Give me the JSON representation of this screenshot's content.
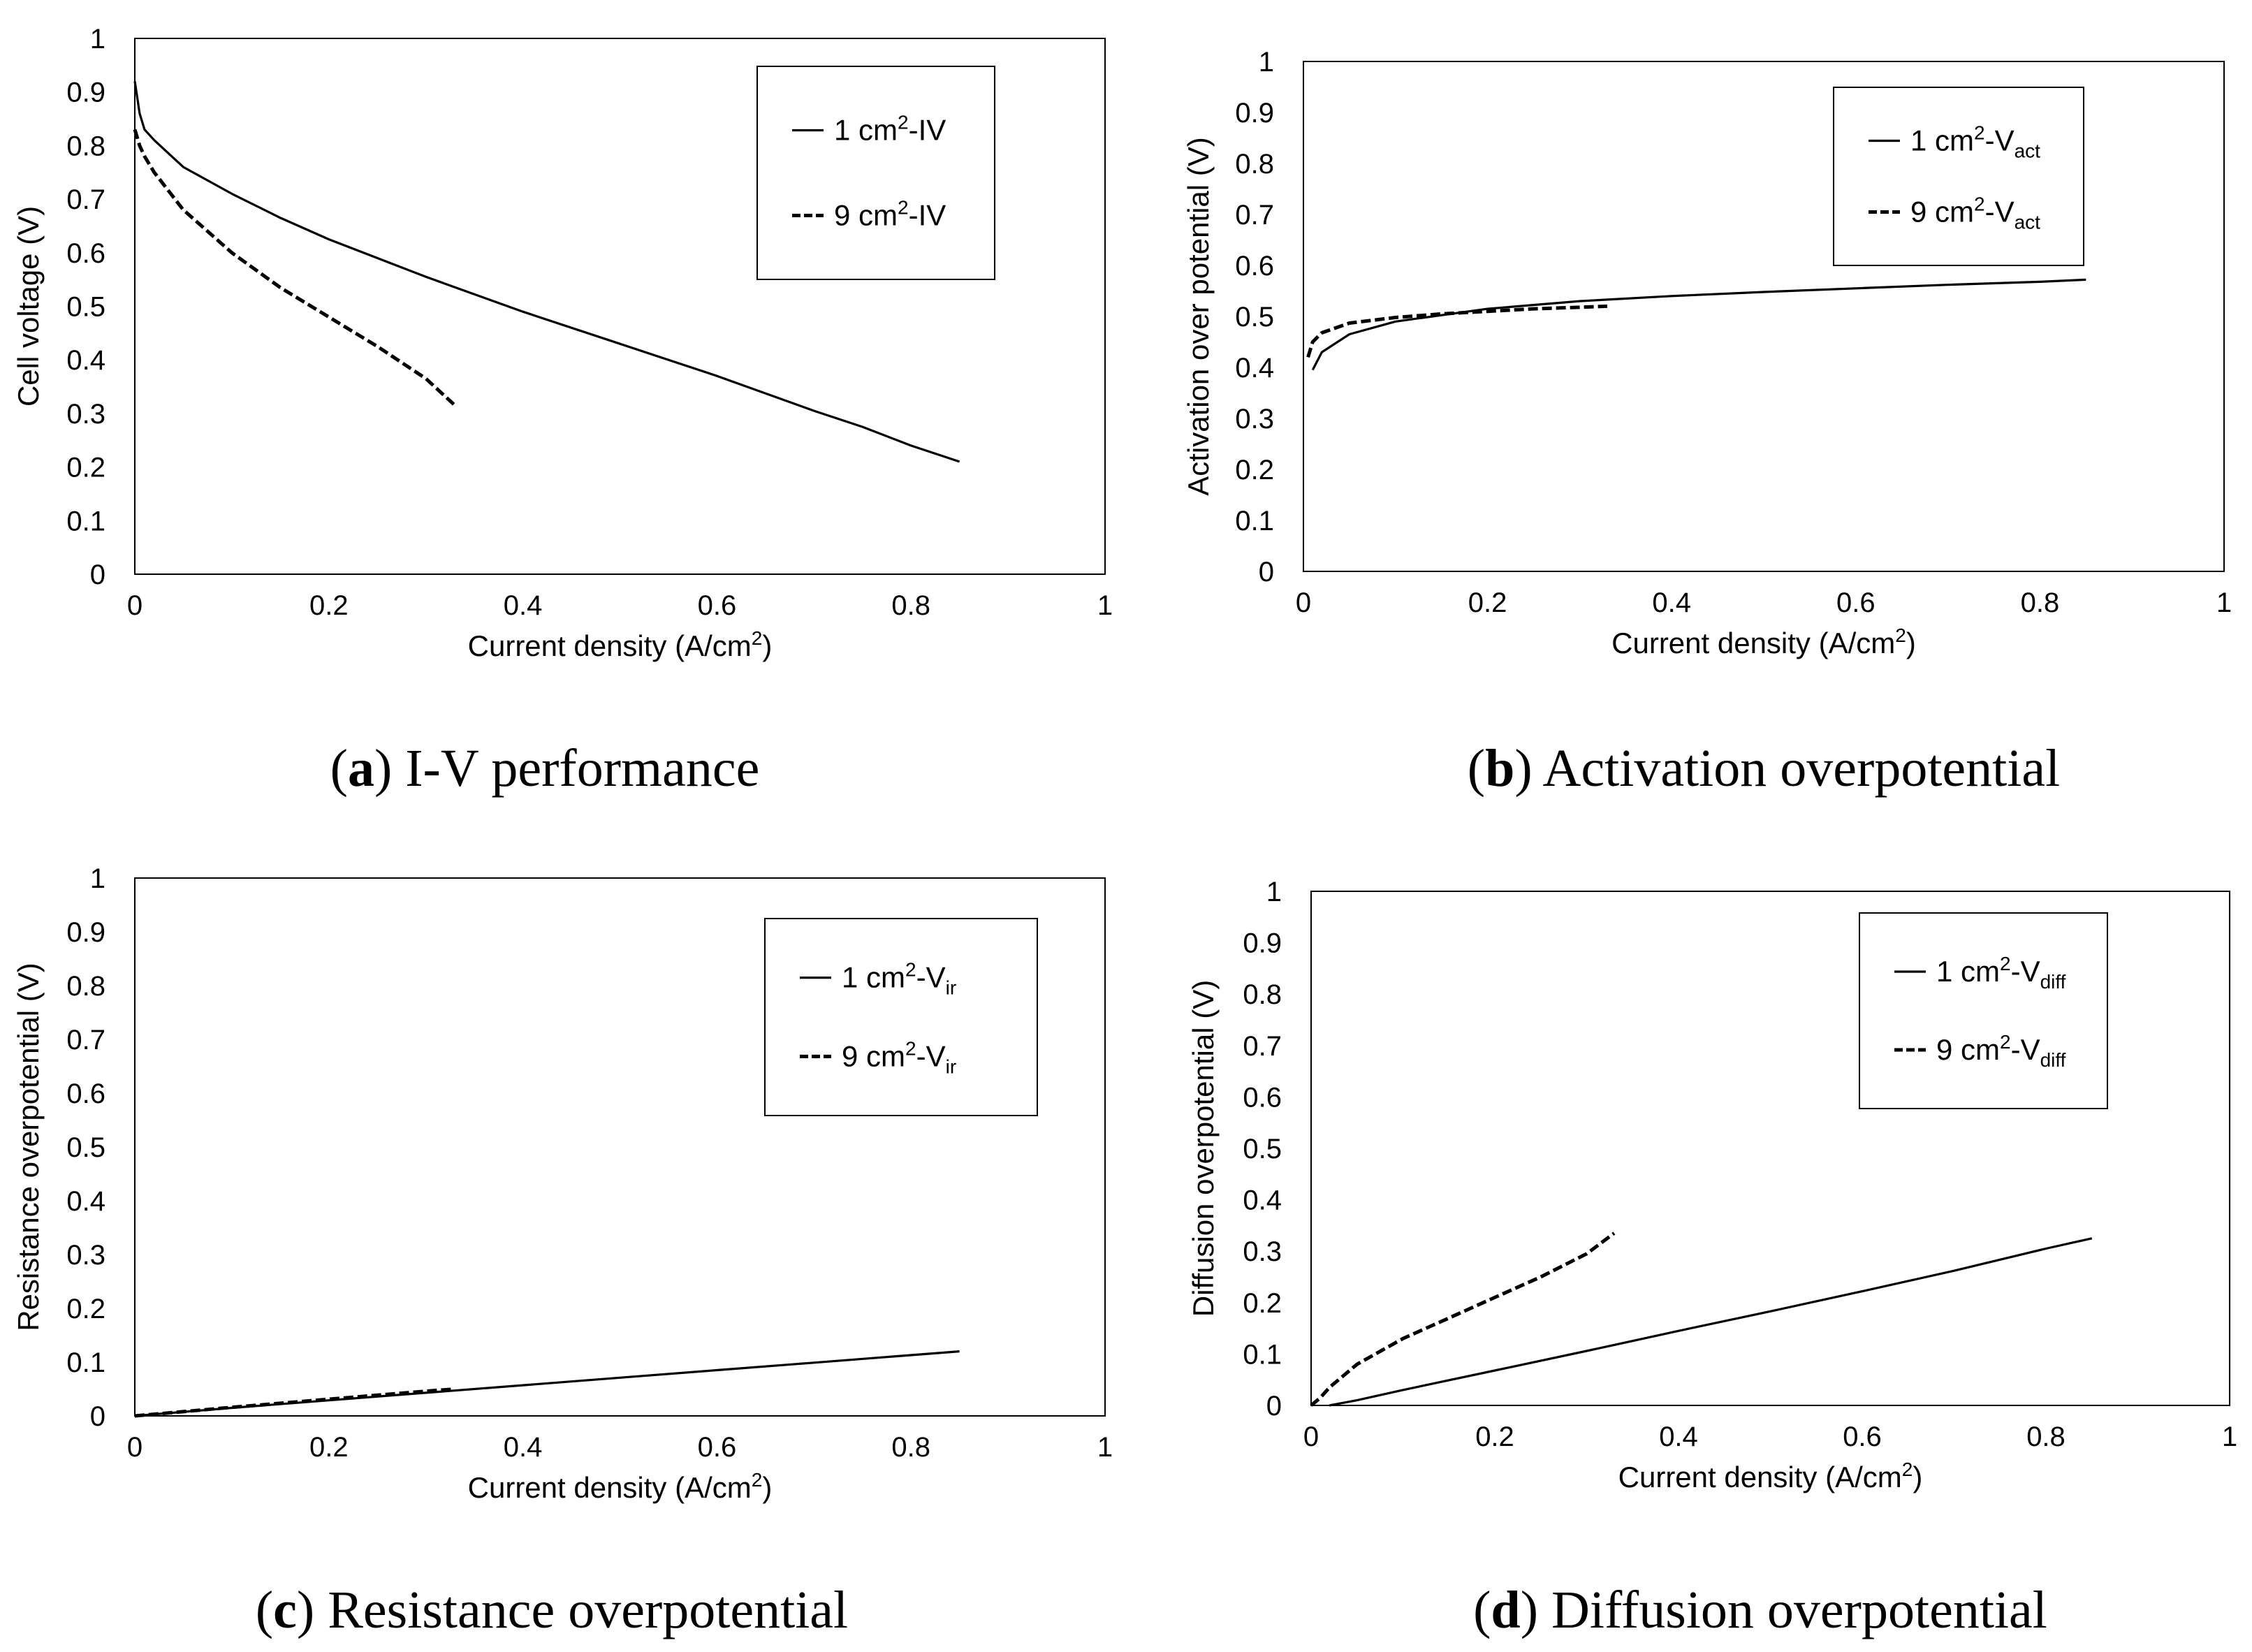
{
  "chart_data": [
    {
      "type": "line",
      "caption_letter": "a",
      "caption_text": "I-V performance",
      "xlabel": "Current density (A/cm",
      "xlabel_sup": "2",
      "xlabel_end": ")",
      "ylabel": "Cell voltage (V)",
      "xlim": [
        0,
        1
      ],
      "ylim": [
        0,
        1
      ],
      "xticks": [
        "0",
        "0.2",
        "0.4",
        "0.6",
        "0.8",
        "1"
      ],
      "yticks": [
        "0",
        "0.1",
        "0.2",
        "0.3",
        "0.4",
        "0.5",
        "0.6",
        "0.7",
        "0.8",
        "0.9",
        "1"
      ],
      "grid": false,
      "legend_position": "top-right",
      "series": [
        {
          "name": "1 cm2-IV",
          "legend": {
            "pre": "1 cm",
            "sup": "2",
            "mid": "-IV",
            "sub": ""
          },
          "dash": "solid",
          "x": [
            0,
            0.005,
            0.01,
            0.02,
            0.05,
            0.1,
            0.15,
            0.2,
            0.3,
            0.4,
            0.5,
            0.6,
            0.7,
            0.75,
            0.8,
            0.85
          ],
          "y": [
            0.92,
            0.86,
            0.83,
            0.81,
            0.76,
            0.71,
            0.665,
            0.625,
            0.555,
            0.49,
            0.43,
            0.37,
            0.305,
            0.275,
            0.24,
            0.21
          ]
        },
        {
          "name": "9 cm2-IV",
          "legend": {
            "pre": "9 cm",
            "sup": "2",
            "mid": "-IV",
            "sub": ""
          },
          "dash": "dashed",
          "x": [
            0,
            0.005,
            0.01,
            0.02,
            0.05,
            0.1,
            0.15,
            0.2,
            0.25,
            0.3,
            0.33
          ],
          "y": [
            0.83,
            0.8,
            0.78,
            0.75,
            0.68,
            0.6,
            0.535,
            0.48,
            0.425,
            0.365,
            0.315
          ]
        }
      ]
    },
    {
      "type": "line",
      "caption_letter": "b",
      "caption_text": "Activation overpotential",
      "xlabel": "Current density (A/cm",
      "xlabel_sup": "2",
      "xlabel_end": ")",
      "ylabel": "Activation over potential (V)",
      "xlim": [
        0,
        1
      ],
      "ylim": [
        0,
        1
      ],
      "xticks": [
        "0",
        "0.2",
        "0.4",
        "0.6",
        "0.8",
        "1"
      ],
      "yticks": [
        "0",
        "0.1",
        "0.2",
        "0.3",
        "0.4",
        "0.5",
        "0.6",
        "0.7",
        "0.8",
        "0.9",
        "1"
      ],
      "grid": false,
      "legend_position": "top-right",
      "series": [
        {
          "name": "1 cm2-Vact",
          "legend": {
            "pre": "1 cm",
            "sup": "2",
            "mid": "-V",
            "sub": "act"
          },
          "dash": "solid",
          "x": [
            0.01,
            0.02,
            0.05,
            0.1,
            0.2,
            0.3,
            0.4,
            0.5,
            0.6,
            0.7,
            0.8,
            0.85
          ],
          "y": [
            0.395,
            0.43,
            0.465,
            0.49,
            0.515,
            0.53,
            0.54,
            0.548,
            0.555,
            0.562,
            0.568,
            0.572
          ]
        },
        {
          "name": "9 cm2-Vact",
          "legend": {
            "pre": "9 cm",
            "sup": "2",
            "mid": "-V",
            "sub": "act"
          },
          "dash": "dashed",
          "x": [
            0.005,
            0.01,
            0.02,
            0.05,
            0.1,
            0.15,
            0.2,
            0.25,
            0.3,
            0.33
          ],
          "y": [
            0.42,
            0.45,
            0.468,
            0.487,
            0.498,
            0.505,
            0.51,
            0.515,
            0.518,
            0.52
          ]
        }
      ]
    },
    {
      "type": "line",
      "caption_letter": "c",
      "caption_text": "Resistance overpotential",
      "xlabel": "Current density (A/cm",
      "xlabel_sup": "2",
      "xlabel_end": ")",
      "ylabel": "Resistance overpotential (V)",
      "xlim": [
        0,
        1
      ],
      "ylim": [
        0,
        1
      ],
      "xticks": [
        "0",
        "0.2",
        "0.4",
        "0.6",
        "0.8",
        "1"
      ],
      "yticks": [
        "0",
        "0.1",
        "0.2",
        "0.3",
        "0.4",
        "0.5",
        "0.6",
        "0.7",
        "0.8",
        "0.9",
        "1"
      ],
      "grid": false,
      "legend_position": "top-right",
      "series": [
        {
          "name": "1 cm2-Vir",
          "legend": {
            "pre": "1 cm",
            "sup": "2",
            "mid": "-V",
            "sub": "ir"
          },
          "dash": "solid",
          "x": [
            0,
            0.1,
            0.2,
            0.3,
            0.4,
            0.5,
            0.6,
            0.7,
            0.8,
            0.85
          ],
          "y": [
            0,
            0.015,
            0.029,
            0.043,
            0.057,
            0.071,
            0.085,
            0.099,
            0.113,
            0.12
          ]
        },
        {
          "name": "9 cm2-Vir",
          "legend": {
            "pre": "9 cm",
            "sup": "2",
            "mid": "-V",
            "sub": "ir"
          },
          "dash": "dashed",
          "x": [
            0,
            0.1,
            0.2,
            0.3,
            0.33
          ],
          "y": [
            0,
            0.016,
            0.031,
            0.046,
            0.05
          ]
        }
      ]
    },
    {
      "type": "line",
      "caption_letter": "d",
      "caption_text": "Diffusion overpotential",
      "xlabel": "Current density (A/cm",
      "xlabel_sup": "2",
      "xlabel_end": ")",
      "ylabel": "Diffusion overpotential (V)",
      "xlim": [
        0,
        1
      ],
      "ylim": [
        0,
        1
      ],
      "xticks": [
        "0",
        "0.2",
        "0.4",
        "0.6",
        "0.8",
        "1"
      ],
      "yticks": [
        "0",
        "0.1",
        "0.2",
        "0.3",
        "0.4",
        "0.5",
        "0.6",
        "0.7",
        "0.8",
        "0.9",
        "1"
      ],
      "grid": false,
      "legend_position": "top-right",
      "series": [
        {
          "name": "1 cm2-Vdiff",
          "legend": {
            "pre": "1 cm",
            "sup": "2",
            "mid": "-V",
            "sub": "diff"
          },
          "dash": "solid",
          "x": [
            0.02,
            0.05,
            0.1,
            0.2,
            0.3,
            0.4,
            0.5,
            0.6,
            0.7,
            0.8,
            0.85
          ],
          "y": [
            0,
            0.01,
            0.03,
            0.068,
            0.106,
            0.145,
            0.183,
            0.222,
            0.262,
            0.305,
            0.325
          ]
        },
        {
          "name": "9 cm2-Vdiff",
          "legend": {
            "pre": "9 cm",
            "sup": "2",
            "mid": "-V",
            "sub": "diff"
          },
          "dash": "dashed",
          "x": [
            0,
            0.01,
            0.02,
            0.05,
            0.1,
            0.15,
            0.2,
            0.25,
            0.3,
            0.33
          ],
          "y": [
            0,
            0.015,
            0.035,
            0.08,
            0.13,
            0.17,
            0.21,
            0.25,
            0.295,
            0.335
          ]
        }
      ]
    }
  ]
}
